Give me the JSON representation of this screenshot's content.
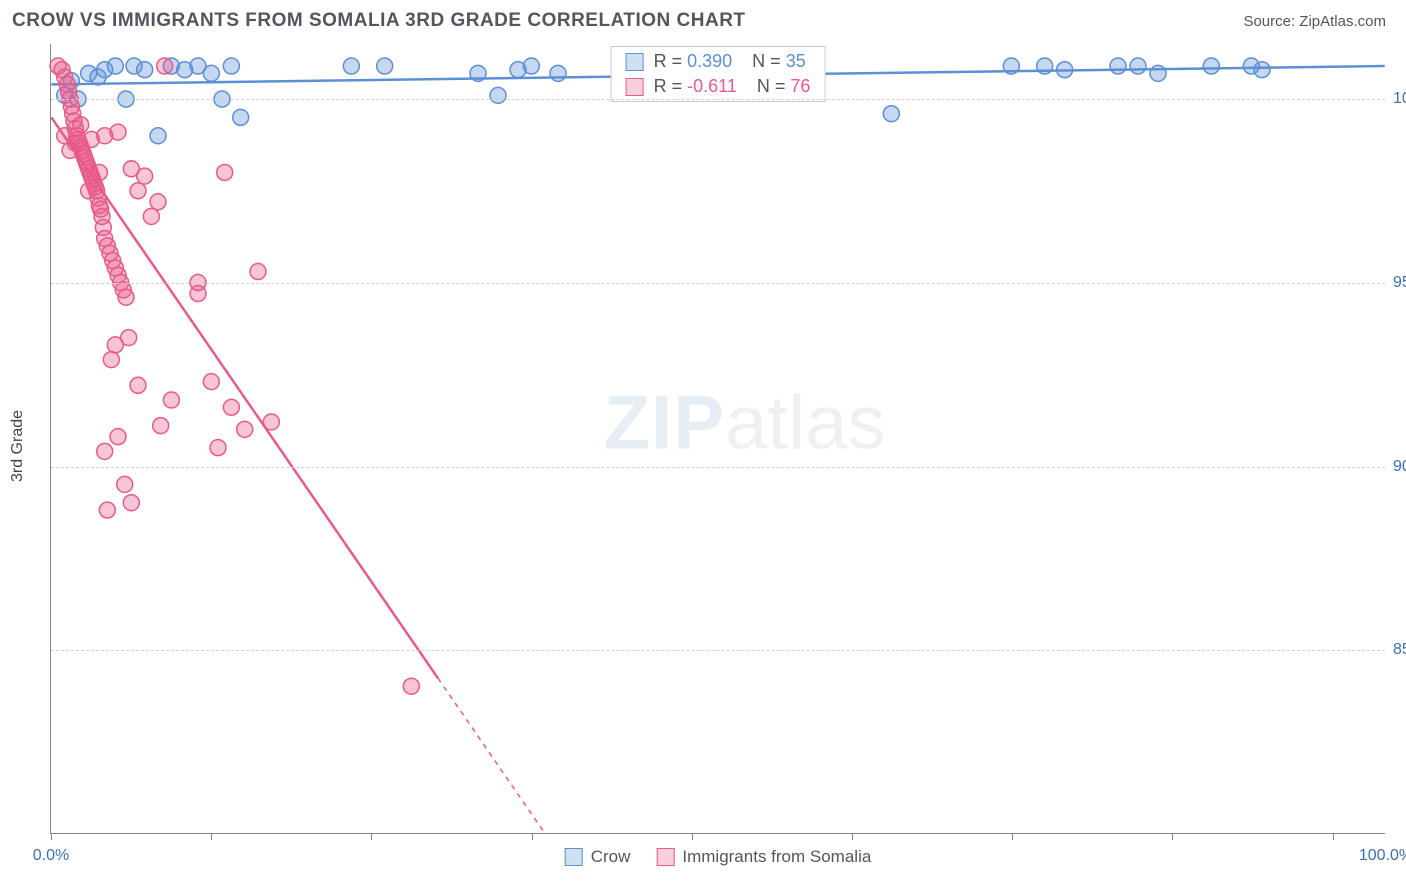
{
  "header": {
    "title": "CROW VS IMMIGRANTS FROM SOMALIA 3RD GRADE CORRELATION CHART",
    "source": "Source: ZipAtlas.com"
  },
  "watermark": {
    "zip": "ZIP",
    "atlas": "atlas"
  },
  "chart": {
    "type": "scatter",
    "y_axis_title": "3rd Grade",
    "background_color": "#ffffff",
    "grid_color": "#d0d0d0",
    "axis_color": "#888888",
    "xlim": [
      0,
      100
    ],
    "ylim": [
      80,
      101.5
    ],
    "x_ticks": [
      0,
      12,
      24,
      36,
      48,
      60,
      72,
      84,
      96
    ],
    "x_tick_labels": {
      "0": "0.0%",
      "100": "100.0%"
    },
    "x_label_color": "#3b6fb6",
    "y_gridlines": [
      85,
      90,
      95,
      100
    ],
    "y_tick_labels": [
      "85.0%",
      "90.0%",
      "95.0%",
      "100.0%"
    ],
    "y_label_color": "#3b6fb6",
    "legend_top": {
      "rows": [
        {
          "r_label": "R = ",
          "r_value": "0.390",
          "n_label": "N = ",
          "n_value": "35",
          "color": "#5b8fd6",
          "fill": "#cfe0f3"
        },
        {
          "r_label": "R = ",
          "r_value": "-0.611",
          "n_label": "N = ",
          "n_value": "76",
          "color": "#e85a8a",
          "fill": "#f7d0dc"
        }
      ]
    },
    "legend_bottom": {
      "items": [
        {
          "label": "Crow",
          "color": "#5b8fd6",
          "fill": "#cfe0f3"
        },
        {
          "label": "Immigrants from Somalia",
          "color": "#e85a8a",
          "fill": "#f7d0dc"
        }
      ]
    },
    "series": [
      {
        "name": "Crow",
        "color": "#5b8fd6",
        "fill": "rgba(91,143,214,0.35)",
        "marker_radius": 8,
        "trend": {
          "x1": 0,
          "y1": 100.4,
          "x2": 100,
          "y2": 100.9,
          "dash_after_x": 100
        },
        "points": [
          [
            1.0,
            100.1
          ],
          [
            1.5,
            100.5
          ],
          [
            2.0,
            100.0
          ],
          [
            2.8,
            100.7
          ],
          [
            3.5,
            100.6
          ],
          [
            4.0,
            100.8
          ],
          [
            4.8,
            100.9
          ],
          [
            5.6,
            100.0
          ],
          [
            6.2,
            100.9
          ],
          [
            7.0,
            100.8
          ],
          [
            8.0,
            99.0
          ],
          [
            9.0,
            100.9
          ],
          [
            10.0,
            100.8
          ],
          [
            11.0,
            100.9
          ],
          [
            12.0,
            100.7
          ],
          [
            12.8,
            100.0
          ],
          [
            13.5,
            100.9
          ],
          [
            14.2,
            99.5
          ],
          [
            22.5,
            100.9
          ],
          [
            25.0,
            100.9
          ],
          [
            32.0,
            100.7
          ],
          [
            33.5,
            100.1
          ],
          [
            35.0,
            100.8
          ],
          [
            36.0,
            100.9
          ],
          [
            38.0,
            100.7
          ],
          [
            63.0,
            99.6
          ],
          [
            72.0,
            100.9
          ],
          [
            74.5,
            100.9
          ],
          [
            76.0,
            100.8
          ],
          [
            80.0,
            100.9
          ],
          [
            81.5,
            100.9
          ],
          [
            83.0,
            100.7
          ],
          [
            87.0,
            100.9
          ],
          [
            90.0,
            100.9
          ],
          [
            90.8,
            100.8
          ]
        ]
      },
      {
        "name": "Immigrants from Somalia",
        "color": "#e85a8a",
        "fill": "rgba(232,90,138,0.35)",
        "marker_radius": 8,
        "trend": {
          "x1": 0,
          "y1": 99.5,
          "x2": 37,
          "y2": 80,
          "dash_after_x": 29
        },
        "points": [
          [
            0.5,
            100.9
          ],
          [
            0.8,
            100.8
          ],
          [
            1.0,
            100.6
          ],
          [
            1.2,
            100.4
          ],
          [
            1.3,
            100.2
          ],
          [
            1.4,
            100.0
          ],
          [
            1.5,
            99.8
          ],
          [
            1.6,
            99.6
          ],
          [
            1.7,
            99.4
          ],
          [
            1.8,
            99.2
          ],
          [
            1.9,
            99.0
          ],
          [
            2.0,
            98.9
          ],
          [
            2.1,
            98.8
          ],
          [
            2.2,
            98.7
          ],
          [
            2.3,
            98.6
          ],
          [
            2.4,
            98.5
          ],
          [
            2.5,
            98.4
          ],
          [
            2.6,
            98.3
          ],
          [
            2.7,
            98.2
          ],
          [
            2.8,
            98.1
          ],
          [
            2.9,
            98.0
          ],
          [
            3.0,
            97.9
          ],
          [
            3.1,
            97.8
          ],
          [
            3.2,
            97.7
          ],
          [
            3.3,
            97.6
          ],
          [
            3.4,
            97.5
          ],
          [
            3.5,
            97.3
          ],
          [
            3.6,
            97.1
          ],
          [
            3.7,
            97.0
          ],
          [
            3.8,
            96.8
          ],
          [
            3.9,
            96.5
          ],
          [
            4.0,
            96.2
          ],
          [
            4.2,
            96.0
          ],
          [
            4.4,
            95.8
          ],
          [
            4.6,
            95.6
          ],
          [
            4.8,
            95.4
          ],
          [
            5.0,
            95.2
          ],
          [
            5.2,
            95.0
          ],
          [
            5.4,
            94.8
          ],
          [
            5.6,
            94.6
          ],
          [
            1.0,
            99.0
          ],
          [
            1.4,
            98.6
          ],
          [
            1.8,
            98.8
          ],
          [
            2.2,
            99.3
          ],
          [
            2.8,
            97.5
          ],
          [
            3.0,
            98.9
          ],
          [
            3.6,
            98.0
          ],
          [
            4.0,
            99.0
          ],
          [
            5.0,
            99.1
          ],
          [
            6.0,
            98.1
          ],
          [
            6.5,
            97.5
          ],
          [
            7.0,
            97.9
          ],
          [
            7.5,
            96.8
          ],
          [
            8.0,
            97.2
          ],
          [
            4.5,
            92.9
          ],
          [
            4.8,
            93.3
          ],
          [
            5.8,
            93.5
          ],
          [
            6.5,
            92.2
          ],
          [
            8.2,
            91.1
          ],
          [
            9.0,
            91.8
          ],
          [
            11.0,
            95.0
          ],
          [
            11.0,
            94.7
          ],
          [
            12.0,
            92.3
          ],
          [
            12.5,
            90.5
          ],
          [
            13.5,
            91.6
          ],
          [
            4.0,
            90.4
          ],
          [
            5.0,
            90.8
          ],
          [
            5.5,
            89.5
          ],
          [
            6.0,
            89.0
          ],
          [
            4.2,
            88.8
          ],
          [
            13.0,
            98.0
          ],
          [
            14.5,
            91.0
          ],
          [
            15.5,
            95.3
          ],
          [
            16.5,
            91.2
          ],
          [
            8.5,
            100.9
          ],
          [
            27.0,
            84.0
          ]
        ]
      }
    ]
  }
}
